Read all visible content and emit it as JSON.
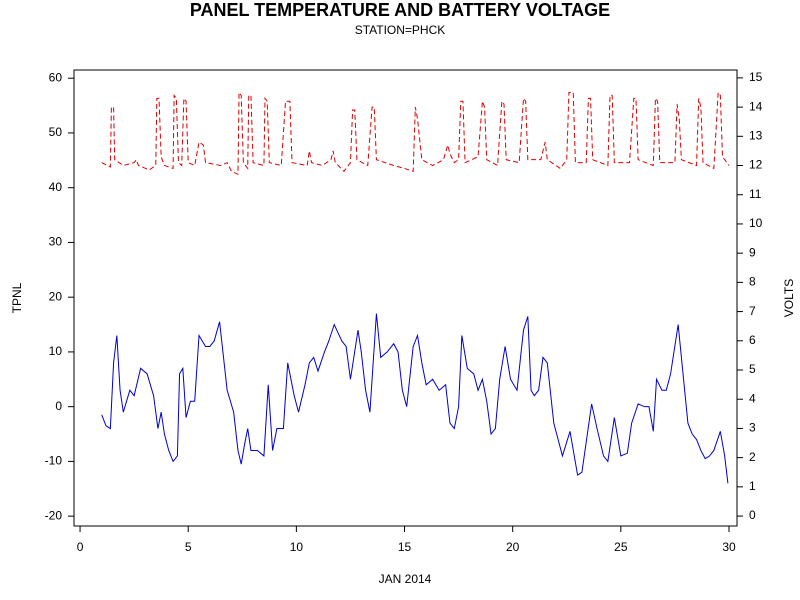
{
  "chart_data": {
    "type": "line",
    "title": "PANEL TEMPERATURE AND BATTERY VOLTAGE",
    "subtitle": "STATION=PHCK",
    "x_label": "JAN 2014",
    "y_label": "TPNL",
    "y2_label": "VOLTS",
    "xlim": [
      -0.28,
      30.37
    ],
    "xticks": [
      0,
      5,
      10,
      15,
      20,
      25,
      30
    ],
    "ylim": [
      -21.8,
      61.5
    ],
    "yticks": [
      -20,
      -10,
      0,
      10,
      20,
      30,
      40,
      50,
      60
    ],
    "y2lim": [
      -0.34,
      15.27
    ],
    "y2ticks": [
      0,
      1,
      2,
      3,
      4,
      5,
      6,
      7,
      8,
      9,
      10,
      11,
      12,
      13,
      14,
      15
    ],
    "series": [
      {
        "name": "TPNL",
        "color": "#0000cc",
        "dash": false,
        "x": [
          1.0,
          1.2,
          1.4,
          1.55,
          1.7,
          1.85,
          2.0,
          2.3,
          2.5,
          2.8,
          3.1,
          3.4,
          3.6,
          3.75,
          3.9,
          4.1,
          4.3,
          4.5,
          4.6,
          4.75,
          4.9,
          5.1,
          5.3,
          5.5,
          5.8,
          6.0,
          6.2,
          6.45,
          6.8,
          7.1,
          7.3,
          7.45,
          7.6,
          7.75,
          7.9,
          8.2,
          8.5,
          8.7,
          8.9,
          9.1,
          9.4,
          9.6,
          9.9,
          10.1,
          10.4,
          10.6,
          10.8,
          11.0,
          11.3,
          11.5,
          11.75,
          12.1,
          12.3,
          12.5,
          12.85,
          13.0,
          13.2,
          13.4,
          13.7,
          13.9,
          14.2,
          14.5,
          14.7,
          14.9,
          15.1,
          15.4,
          15.6,
          15.8,
          16.0,
          16.3,
          16.6,
          16.9,
          17.1,
          17.3,
          17.5,
          17.65,
          17.9,
          18.2,
          18.4,
          18.6,
          18.8,
          19.0,
          19.2,
          19.4,
          19.65,
          19.9,
          20.2,
          20.5,
          20.7,
          20.85,
          21.0,
          21.2,
          21.4,
          21.6,
          21.9,
          22.1,
          22.3,
          22.65,
          23.0,
          23.2,
          23.65,
          23.9,
          24.2,
          24.4,
          24.7,
          25.0,
          25.3,
          25.5,
          25.8,
          26.1,
          26.3,
          26.5,
          26.65,
          26.9,
          27.1,
          27.3,
          27.65,
          27.9,
          28.1,
          28.3,
          28.5,
          28.7,
          28.9,
          29.1,
          29.3,
          29.6,
          29.8,
          29.95
        ],
        "values": [
          -1.5,
          -3.5,
          -4,
          8,
          13,
          3,
          -1,
          3,
          2,
          7,
          6,
          2,
          -4,
          -1,
          -5,
          -8,
          -10,
          -9,
          6,
          7,
          -2,
          1,
          1,
          13,
          11,
          11,
          12,
          15.5,
          3,
          -1,
          -8,
          -10.5,
          -7,
          -4,
          -8,
          -8,
          -9,
          4,
          -8,
          -4,
          -4,
          8,
          2,
          -1,
          4,
          8,
          9,
          6.5,
          10,
          12,
          15,
          12,
          11,
          5,
          14,
          10,
          3,
          -1,
          17,
          9,
          10,
          11.5,
          10,
          3,
          0,
          11,
          13,
          8,
          4,
          5,
          3,
          4,
          -3,
          -4,
          0,
          13,
          7,
          6,
          3,
          5,
          1,
          -5,
          -4,
          5,
          11,
          5,
          3,
          14,
          16.5,
          3,
          2,
          3,
          9,
          8,
          -3,
          -6,
          -9,
          -4.5,
          -12.5,
          -12,
          0.5,
          -4,
          -9,
          -10,
          -2,
          -9,
          -8.5,
          -3,
          0.5,
          0,
          0,
          -4.5,
          5,
          3,
          3,
          6,
          15,
          5,
          -3,
          -5,
          -6,
          -8,
          -9.5,
          -9,
          -8,
          -4.5,
          -9,
          -14
        ]
      },
      {
        "name": "VOLTS",
        "color": "#dd0000",
        "dash": true,
        "axis": "y2",
        "x": [
          1.0,
          1.4,
          1.45,
          1.55,
          1.6,
          2.0,
          2.5,
          2.6,
          2.7,
          3.2,
          3.5,
          3.55,
          3.65,
          3.75,
          3.9,
          4.3,
          4.35,
          4.45,
          4.55,
          4.7,
          4.8,
          4.9,
          5.0,
          5.3,
          5.5,
          5.7,
          5.8,
          6.5,
          6.8,
          7.0,
          7.3,
          7.35,
          7.45,
          7.55,
          7.75,
          7.8,
          7.9,
          8.0,
          8.5,
          8.55,
          8.65,
          8.75,
          9.3,
          9.5,
          9.7,
          9.8,
          10.5,
          10.6,
          10.7,
          11.2,
          11.6,
          11.7,
          11.8,
          12.2,
          12.5,
          12.6,
          12.7,
          12.8,
          13.3,
          13.5,
          13.6,
          13.7,
          14.5,
          15.0,
          15.4,
          15.5,
          15.6,
          15.8,
          16.3,
          16.8,
          17.0,
          17.1,
          17.3,
          17.5,
          17.6,
          17.7,
          17.8,
          18.4,
          18.6,
          18.7,
          18.8,
          19.3,
          19.5,
          19.6,
          19.7,
          20.3,
          20.5,
          20.6,
          20.7,
          21.3,
          21.5,
          21.6,
          22.2,
          22.5,
          22.6,
          22.8,
          22.9,
          23.4,
          23.5,
          23.6,
          23.7,
          24.4,
          24.5,
          24.6,
          24.7,
          25.4,
          25.6,
          25.7,
          25.8,
          26.5,
          26.6,
          26.7,
          26.8,
          27.5,
          27.6,
          27.7,
          27.8,
          28.5,
          28.6,
          28.7,
          28.8,
          29.3,
          29.5,
          29.6,
          29.7,
          30.0
        ],
        "values": [
          12.1,
          11.95,
          14.0,
          14.0,
          12.2,
          12.0,
          12.1,
          12.2,
          12.0,
          11.85,
          12.0,
          14.3,
          14.3,
          12.3,
          12.0,
          11.9,
          14.4,
          14.3,
          12.1,
          12.0,
          14.3,
          14.2,
          12.1,
          12.0,
          12.8,
          12.7,
          12.1,
          12.0,
          12.1,
          11.8,
          11.7,
          14.5,
          14.4,
          12.1,
          11.9,
          14.4,
          14.4,
          12.1,
          12.0,
          14.3,
          14.2,
          12.1,
          12.0,
          14.2,
          14.2,
          12.1,
          12.0,
          12.5,
          12.1,
          12.0,
          12.2,
          12.5,
          12.1,
          11.8,
          12.1,
          13.9,
          13.9,
          12.2,
          12.0,
          14.0,
          14.0,
          12.2,
          12.0,
          11.9,
          11.8,
          14.0,
          13.6,
          12.2,
          12.0,
          12.2,
          12.7,
          12.4,
          12.1,
          12.2,
          14.2,
          14.2,
          12.1,
          12.3,
          14.2,
          14.0,
          12.2,
          12.0,
          14.2,
          14.1,
          12.2,
          12.1,
          14.3,
          14.2,
          12.2,
          12.2,
          12.8,
          12.2,
          11.9,
          12.2,
          14.5,
          14.5,
          12.1,
          12.1,
          14.3,
          14.3,
          12.2,
          12.0,
          14.4,
          14.4,
          12.1,
          12.1,
          14.3,
          14.3,
          12.2,
          12.0,
          14.3,
          14.2,
          12.1,
          12.1,
          14.1,
          13.6,
          12.2,
          12.0,
          14.3,
          14.0,
          12.1,
          11.9,
          14.5,
          14.4,
          12.3,
          12.0
        ]
      }
    ]
  }
}
